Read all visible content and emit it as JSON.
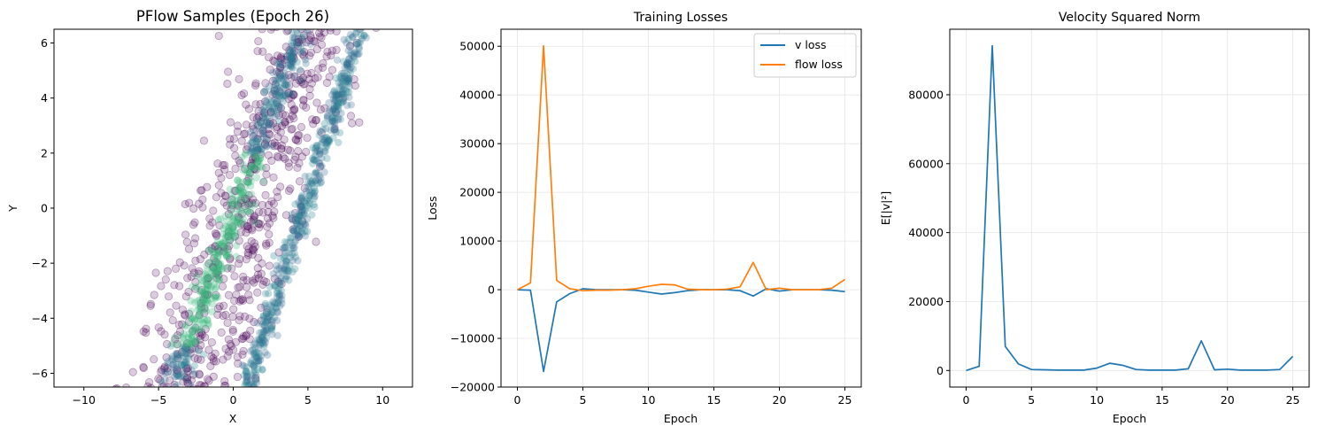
{
  "colors": {
    "v_loss": "#1f77b4",
    "flow_loss": "#ff7f0e",
    "sample_low": "#440154",
    "sample_high": "#35b779"
  },
  "chart_data": [
    {
      "type": "scatter",
      "title": "PFlow Samples (Epoch 26)",
      "xlabel": "X",
      "ylabel": "Y",
      "xlim": [
        -12,
        12
      ],
      "ylim": [
        -6.5,
        6.5
      ],
      "xticks": [
        -10,
        -5,
        0,
        5,
        10
      ],
      "yticks": [
        -6,
        -4,
        -2,
        0,
        2,
        4,
        6
      ],
      "tick_labels_x": [
        "−10",
        "−5",
        "0",
        "5",
        "10"
      ],
      "tick_labels_y": [
        "−6",
        "−4",
        "−2",
        "0",
        "2",
        "4",
        "6"
      ],
      "grid": false,
      "description_series": [
        {
          "name": "dense left ridge",
          "from": [
            -4,
            -6.5
          ],
          "to": [
            4.5,
            6.5
          ]
        },
        {
          "name": "dense right ridge",
          "from": [
            1,
            -6.5
          ],
          "to": [
            8.5,
            6.5
          ]
        },
        {
          "name": "diffuse cloud",
          "x_range": [
            -6.5,
            11
          ],
          "y_range": [
            -6.5,
            6.5
          ]
        }
      ]
    },
    {
      "type": "line",
      "title": "Training Losses",
      "xlabel": "Epoch",
      "ylabel": "Loss",
      "xlim": [
        -1.25,
        26.25
      ],
      "ylim": [
        -20000,
        53500
      ],
      "xticks": [
        0,
        5,
        10,
        15,
        20,
        25
      ],
      "yticks": [
        -20000,
        -10000,
        0,
        10000,
        20000,
        30000,
        40000,
        50000
      ],
      "tick_labels_x": [
        "0",
        "5",
        "10",
        "15",
        "20",
        "25"
      ],
      "tick_labels_y": [
        "−20000",
        "−10000",
        "0",
        "10000",
        "20000",
        "30000",
        "40000",
        "50000"
      ],
      "grid": true,
      "legend": "top-right",
      "x": [
        0,
        1,
        2,
        3,
        4,
        5,
        6,
        7,
        8,
        9,
        10,
        11,
        12,
        13,
        14,
        15,
        16,
        17,
        18,
        19,
        20,
        21,
        22,
        23,
        24,
        25
      ],
      "series": [
        {
          "name": "v loss",
          "color": "#1f77b4",
          "values": [
            0,
            -100,
            -16800,
            -2500,
            -800,
            200,
            0,
            0,
            0,
            -100,
            -500,
            -900,
            -600,
            -200,
            0,
            0,
            0,
            -200,
            -1300,
            200,
            -300,
            0,
            0,
            0,
            -100,
            -400
          ]
        },
        {
          "name": "flow loss",
          "color": "#ff7f0e",
          "values": [
            0,
            1400,
            50100,
            1900,
            200,
            -200,
            -100,
            -100,
            0,
            200,
            700,
            1100,
            1000,
            100,
            0,
            0,
            100,
            600,
            5600,
            0,
            300,
            0,
            0,
            0,
            300,
            2100
          ]
        }
      ]
    },
    {
      "type": "line",
      "title": "Velocity Squared Norm",
      "xlabel": "Epoch",
      "ylabel": "E[|v|²]",
      "xlim": [
        -1.25,
        26.25
      ],
      "ylim": [
        -4800,
        99000
      ],
      "xticks": [
        0,
        5,
        10,
        15,
        20,
        25
      ],
      "yticks": [
        0,
        20000,
        40000,
        60000,
        80000
      ],
      "tick_labels_x": [
        "0",
        "5",
        "10",
        "15",
        "20",
        "25"
      ],
      "tick_labels_y": [
        "0",
        "20000",
        "40000",
        "60000",
        "80000"
      ],
      "grid": true,
      "x": [
        0,
        1,
        2,
        3,
        4,
        5,
        6,
        7,
        8,
        9,
        10,
        11,
        12,
        13,
        14,
        15,
        16,
        17,
        18,
        19,
        20,
        21,
        22,
        23,
        24,
        25
      ],
      "series": [
        {
          "name": "velocity squared norm",
          "color": "#1f77b4",
          "values": [
            0,
            1200,
            94200,
            7000,
            1900,
            300,
            200,
            100,
            100,
            100,
            700,
            2100,
            1500,
            300,
            100,
            100,
            100,
            500,
            8600,
            200,
            400,
            100,
            100,
            100,
            300,
            4100
          ]
        }
      ]
    }
  ]
}
